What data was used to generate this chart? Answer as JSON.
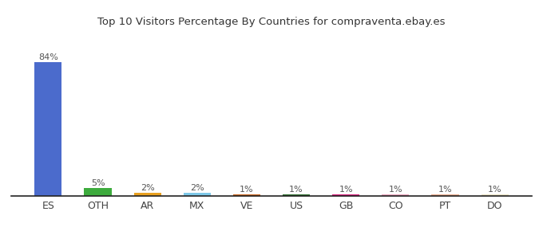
{
  "categories": [
    "ES",
    "OTH",
    "AR",
    "MX",
    "VE",
    "US",
    "GB",
    "CO",
    "PT",
    "DO"
  ],
  "values": [
    84,
    5,
    2,
    2,
    1,
    1,
    1,
    1,
    1,
    1
  ],
  "labels": [
    "84%",
    "5%",
    "2%",
    "2%",
    "1%",
    "1%",
    "1%",
    "1%",
    "1%",
    "1%"
  ],
  "colors": [
    "#4b6bcc",
    "#3dab3d",
    "#e8a020",
    "#7ec8e8",
    "#c8621a",
    "#2a6b2a",
    "#d81b7a",
    "#e8a0b8",
    "#e8a888",
    "#e8e0c0"
  ],
  "title": "Top 10 Visitors Percentage By Countries for compraventa.ebay.es",
  "ylim": [
    0,
    90
  ],
  "bar_width": 0.55,
  "label_fontsize": 8,
  "tick_fontsize": 9,
  "title_fontsize": 9.5,
  "background_color": "#ffffff"
}
